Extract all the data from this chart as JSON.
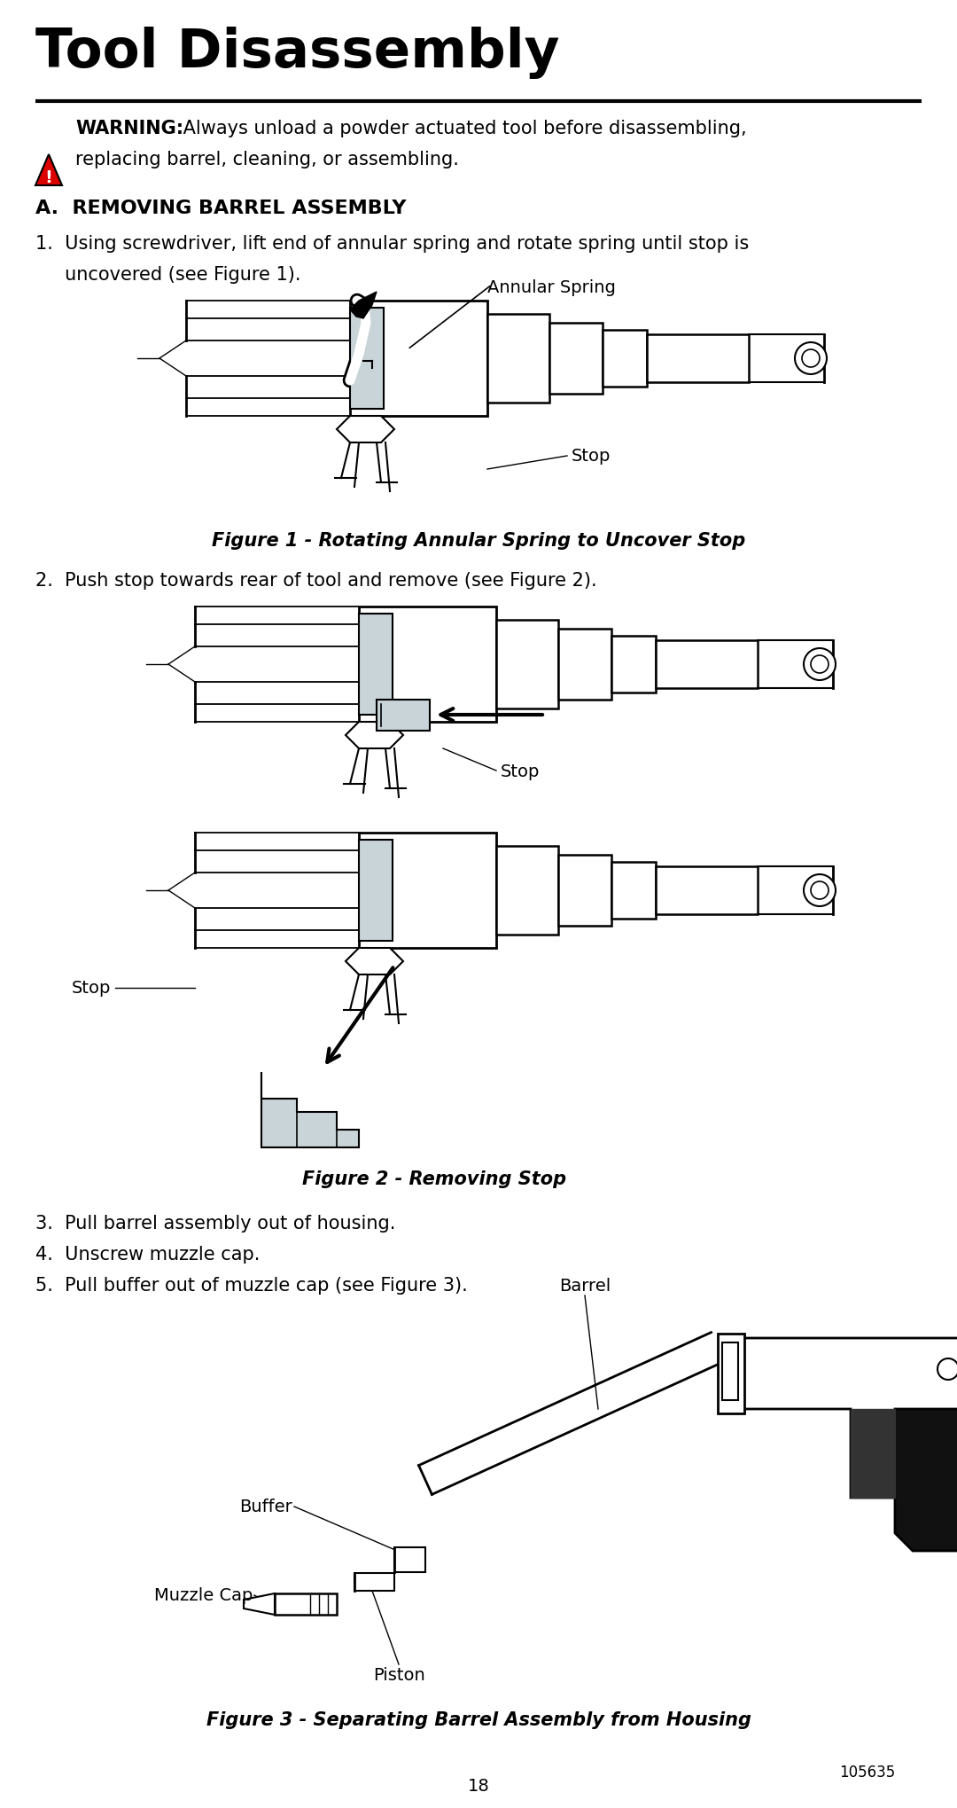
{
  "title": "Tool Disassembly",
  "warning_bold": "WARNING:",
  "warning_text": " Always unload a powder actuated tool before disassembling,\nreplacing barrel, cleaning, or assembling.",
  "section_title": "A.  REMOVING BARREL ASSEMBLY",
  "step1_line1": "1.  Using screwdriver, lift end of annular spring and rotate spring until stop is",
  "step1_line2": "     uncovered (see Figure 1).",
  "annular_spring_label": "Annular Spring",
  "stop_label": "Stop",
  "step2": "2.  Push stop towards rear of tool and remove (see Figure 2).",
  "step3": "3.  Pull barrel assembly out of housing.",
  "step4": "4.  Unscrew muzzle cap.",
  "step5": "5.  Pull buffer out of muzzle cap (see Figure 3).",
  "fig1_caption": "Figure 1 - Rotating Annular Spring to Uncover Stop",
  "fig2_caption": "Figure 2 - Removing Stop",
  "fig3_caption": "Figure 3 - Separating Barrel Assembly from Housing",
  "barrel_label": "Barrel",
  "buffer_label": "Buffer",
  "muzzle_label": "Muzzle Cap",
  "piston_label": "Piston",
  "page_number": "18",
  "doc_number": "105635",
  "bg_color": "#ffffff",
  "text_color": "#000000",
  "warning_red": "#cc0000",
  "grey_light": "#c8d4d8",
  "grey_mid": "#a0b0b8"
}
